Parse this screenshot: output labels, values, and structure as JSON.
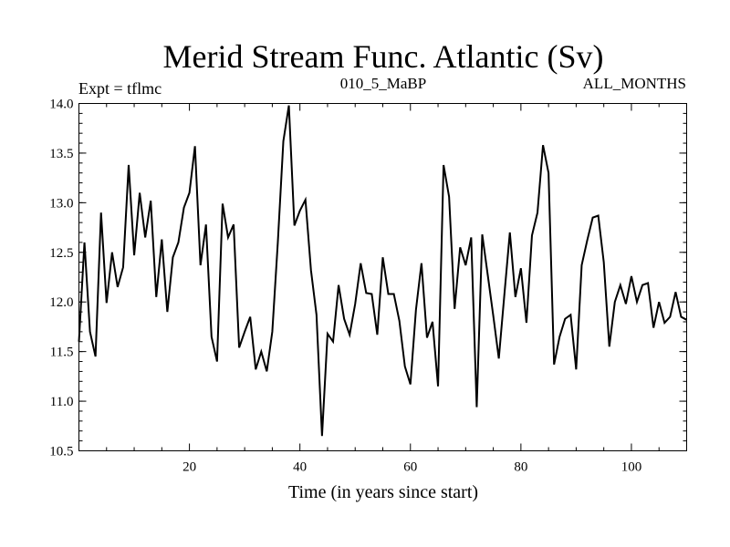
{
  "chart_data": {
    "type": "line",
    "title": "Merid Stream Func. Atlantic (Sv)",
    "subtitle_left": "Expt = tflmc",
    "subtitle_center": "010_5_MaBP",
    "subtitle_right": "ALL_MONTHS",
    "xlabel": "Time (in years since start)",
    "ylabel": "",
    "xlim": [
      0,
      110
    ],
    "ylim": [
      10.5,
      14.0
    ],
    "xticks": [
      20,
      40,
      60,
      80,
      100
    ],
    "yticks": [
      10.5,
      11.0,
      11.5,
      12.0,
      12.5,
      13.0,
      13.5,
      14.0
    ],
    "ytick_labels": [
      "10.5",
      "11.0",
      "11.5",
      "12.0",
      "12.5",
      "13.0",
      "13.5",
      "14.0"
    ],
    "grid": false,
    "series": [
      {
        "name": "Merid Stream Func. Atlantic",
        "color": "#000000",
        "x": [
          0,
          1,
          2,
          3,
          4,
          5,
          6,
          7,
          8,
          9,
          10,
          11,
          12,
          13,
          14,
          15,
          16,
          17,
          18,
          19,
          20,
          21,
          22,
          23,
          24,
          25,
          26,
          27,
          28,
          29,
          30,
          31,
          32,
          33,
          34,
          35,
          36,
          37,
          38,
          39,
          40,
          41,
          42,
          43,
          44,
          45,
          46,
          47,
          48,
          49,
          50,
          51,
          52,
          53,
          54,
          55,
          56,
          57,
          58,
          59,
          60,
          61,
          62,
          63,
          64,
          65,
          66,
          67,
          68,
          69,
          70,
          71,
          72,
          73,
          74,
          75,
          76,
          77,
          78,
          79,
          80,
          81,
          82,
          83,
          84,
          85,
          86,
          87,
          88,
          89,
          90,
          91,
          92,
          93,
          94,
          95,
          96,
          97,
          98,
          99,
          100,
          101,
          102,
          103,
          104,
          105,
          106,
          107,
          108,
          109,
          110
        ],
        "values": [
          11.6,
          12.6,
          11.7,
          11.45,
          12.9,
          11.99,
          12.5,
          12.15,
          12.35,
          13.38,
          12.47,
          13.1,
          12.65,
          13.02,
          12.05,
          12.63,
          11.9,
          12.45,
          12.6,
          12.95,
          13.1,
          13.57,
          12.37,
          12.78,
          11.65,
          11.4,
          12.99,
          12.65,
          12.78,
          11.54,
          11.7,
          11.85,
          11.32,
          11.5,
          11.3,
          11.7,
          12.6,
          13.62,
          13.98,
          12.77,
          12.92,
          13.03,
          12.32,
          11.87,
          10.65,
          11.68,
          11.6,
          12.17,
          11.83,
          11.67,
          11.98,
          12.39,
          12.09,
          12.08,
          11.67,
          12.45,
          12.08,
          12.08,
          11.81,
          11.35,
          11.17,
          11.92,
          12.39,
          11.64,
          11.8,
          11.15,
          13.38,
          13.06,
          11.93,
          12.55,
          12.37,
          12.65,
          10.94,
          12.68,
          12.27,
          11.86,
          11.43,
          12.07,
          12.7,
          12.05,
          12.34,
          11.79,
          12.67,
          12.9,
          13.58,
          13.3,
          11.37,
          11.65,
          11.83,
          11.87,
          11.32,
          12.37,
          12.62,
          12.85,
          12.87,
          12.4,
          11.55,
          12.0,
          12.17,
          11.98,
          12.26,
          12.0,
          12.17,
          12.19,
          11.74,
          12.0,
          11.79,
          11.85,
          12.1,
          11.85,
          11.82
        ]
      }
    ]
  }
}
